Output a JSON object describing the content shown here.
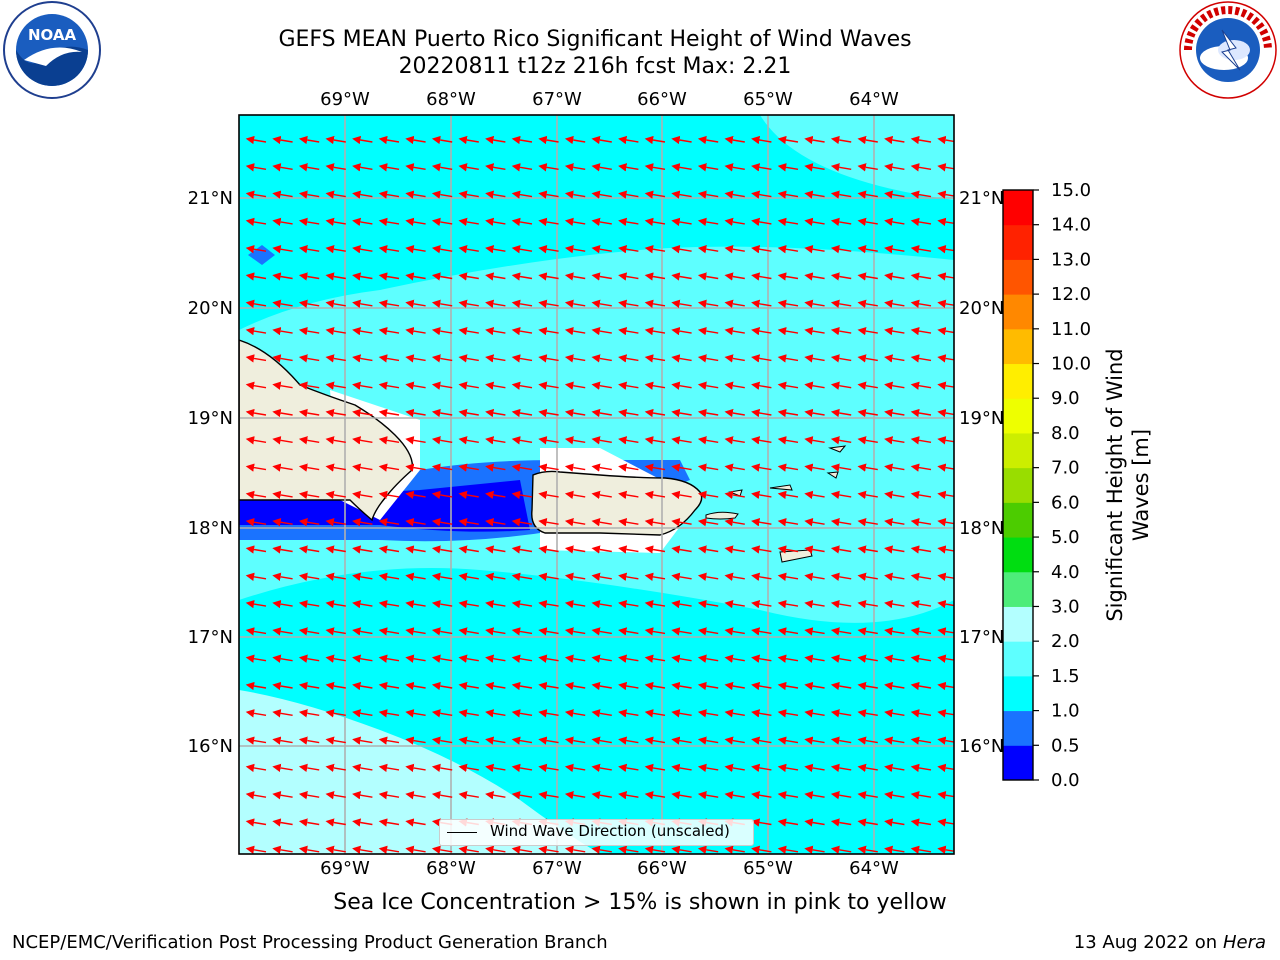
{
  "header": {
    "title_line1": "GEFS MEAN Puerto Rico Significant Height of Wind Waves",
    "title_line2": "20220811 t12z 216h fcst   Max: 2.21"
  },
  "logos": {
    "noaa": "NOAA",
    "nws": "NATIONAL WEATHER SERVICE"
  },
  "map": {
    "lon_labels": [
      "69°W",
      "68°W",
      "67°W",
      "66°W",
      "65°W",
      "64°W"
    ],
    "lat_labels": [
      "21°N",
      "20°N",
      "19°N",
      "18°N",
      "17°N",
      "16°N"
    ],
    "legend_label": "Wind Wave Direction (unscaled)",
    "arrow_color": "#ff0000",
    "ocean_color": "#66ffff",
    "land_color": "#efeedd"
  },
  "colorbar": {
    "title": "Significant Height of Wind Waves [m]",
    "ticks": [
      "0.0",
      "0.5",
      "1.0",
      "1.5",
      "2.0",
      "3.0",
      "4.0",
      "5.0",
      "6.0",
      "7.0",
      "8.0",
      "9.0",
      "10.0",
      "11.0",
      "12.0",
      "13.0",
      "14.0",
      "15.0"
    ],
    "colors": [
      "#0000ff",
      "#1a73ff",
      "#00ffff",
      "#5effff",
      "#b3ffff",
      "#4ded7a",
      "#00dd11",
      "#4ccc00",
      "#99dd00",
      "#ccee00",
      "#eeff00",
      "#ffee00",
      "#ffbb00",
      "#ff8800",
      "#ff5500",
      "#ff2200",
      "#ff0000"
    ]
  },
  "footer": {
    "note": "Sea Ice Concentration > 15% is shown in pink to yellow",
    "left": "NCEP/EMC/Verification Post Processing Product Generation Branch",
    "right_date": "13 Aug 2022 on",
    "right_host": "Hera"
  }
}
